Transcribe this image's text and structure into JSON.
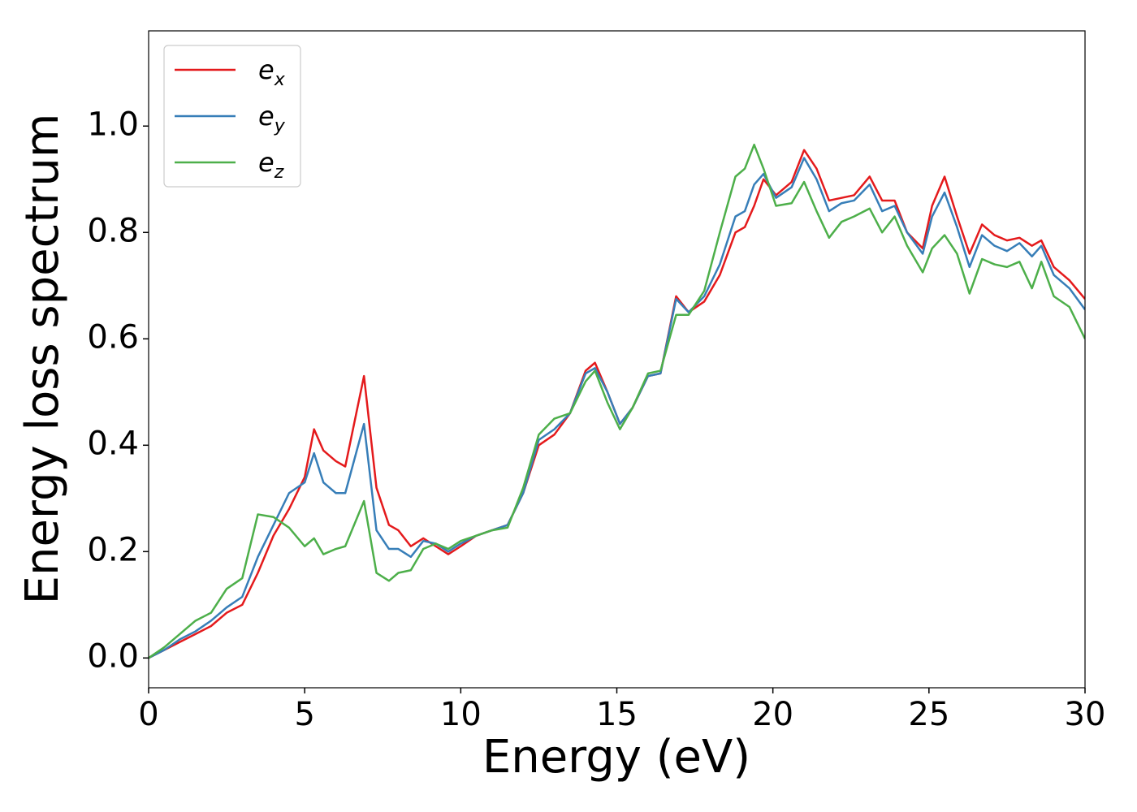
{
  "chart_data": {
    "type": "line",
    "xlabel": "Energy (eV)",
    "ylabel": "Energy loss spectrum",
    "xlim": [
      0,
      30
    ],
    "ylim": [
      -0.056,
      1.179
    ],
    "xticks": [
      0,
      5,
      10,
      15,
      20,
      25,
      30
    ],
    "yticks": [
      {
        "value": 0,
        "label": "0.0"
      },
      0.2,
      0.4,
      0.6,
      0.8,
      {
        "value": 1,
        "label": "1.0"
      }
    ],
    "grid": false,
    "legend": "upper left",
    "x": [
      0,
      0.5,
      1,
      1.5,
      2,
      2.5,
      3,
      3.5,
      4,
      4.5,
      5,
      5.3,
      5.6,
      6,
      6.3,
      6.9,
      7.3,
      7.7,
      8,
      8.4,
      8.8,
      9.2,
      9.6,
      10,
      10.5,
      11,
      11.5,
      12,
      12.5,
      13,
      13.5,
      14,
      14.3,
      14.7,
      15.1,
      15.5,
      16,
      16.4,
      16.9,
      17.3,
      17.8,
      18.3,
      18.8,
      19.1,
      19.4,
      19.7,
      20.1,
      20.6,
      21,
      21.4,
      21.8,
      22.2,
      22.6,
      23.1,
      23.5,
      23.9,
      24.3,
      24.8,
      25.1,
      25.5,
      25.9,
      26.3,
      26.7,
      27.1,
      27.5,
      27.9,
      28.3,
      28.6,
      29,
      29.5,
      30
    ],
    "series": [
      {
        "name": "e",
        "subscript": "x",
        "color": "#e41a1c",
        "values": [
          0,
          0.015,
          0.03,
          0.045,
          0.06,
          0.085,
          0.1,
          0.16,
          0.23,
          0.28,
          0.34,
          0.43,
          0.39,
          0.37,
          0.36,
          0.53,
          0.32,
          0.25,
          0.24,
          0.21,
          0.225,
          0.21,
          0.195,
          0.21,
          0.23,
          0.24,
          0.25,
          0.31,
          0.4,
          0.42,
          0.46,
          0.54,
          0.555,
          0.5,
          0.44,
          0.47,
          0.53,
          0.535,
          0.68,
          0.65,
          0.67,
          0.72,
          0.8,
          0.81,
          0.85,
          0.9,
          0.87,
          0.895,
          0.955,
          0.92,
          0.86,
          0.865,
          0.87,
          0.905,
          0.86,
          0.86,
          0.8,
          0.77,
          0.85,
          0.905,
          0.83,
          0.76,
          0.815,
          0.795,
          0.785,
          0.79,
          0.775,
          0.785,
          0.735,
          0.71,
          0.675
        ]
      },
      {
        "name": "e",
        "subscript": "y",
        "color": "#377eb8",
        "values": [
          0,
          0.015,
          0.035,
          0.05,
          0.07,
          0.095,
          0.115,
          0.19,
          0.25,
          0.31,
          0.33,
          0.385,
          0.33,
          0.31,
          0.31,
          0.44,
          0.24,
          0.205,
          0.205,
          0.19,
          0.22,
          0.215,
          0.2,
          0.215,
          0.23,
          0.24,
          0.25,
          0.31,
          0.41,
          0.43,
          0.46,
          0.535,
          0.545,
          0.5,
          0.44,
          0.47,
          0.53,
          0.535,
          0.675,
          0.65,
          0.68,
          0.74,
          0.83,
          0.84,
          0.89,
          0.91,
          0.865,
          0.885,
          0.94,
          0.9,
          0.84,
          0.855,
          0.86,
          0.89,
          0.84,
          0.85,
          0.8,
          0.76,
          0.83,
          0.875,
          0.81,
          0.735,
          0.795,
          0.775,
          0.765,
          0.78,
          0.755,
          0.775,
          0.72,
          0.695,
          0.655
        ]
      },
      {
        "name": "e",
        "subscript": "z",
        "color": "#4daf4a",
        "values": [
          0,
          0.02,
          0.045,
          0.07,
          0.085,
          0.13,
          0.15,
          0.27,
          0.265,
          0.245,
          0.21,
          0.225,
          0.195,
          0.205,
          0.21,
          0.295,
          0.16,
          0.145,
          0.16,
          0.165,
          0.205,
          0.215,
          0.205,
          0.22,
          0.23,
          0.24,
          0.245,
          0.32,
          0.42,
          0.45,
          0.46,
          0.52,
          0.54,
          0.48,
          0.43,
          0.47,
          0.535,
          0.54,
          0.645,
          0.645,
          0.69,
          0.8,
          0.905,
          0.92,
          0.965,
          0.92,
          0.85,
          0.855,
          0.895,
          0.84,
          0.79,
          0.82,
          0.83,
          0.845,
          0.8,
          0.83,
          0.775,
          0.725,
          0.77,
          0.795,
          0.76,
          0.685,
          0.75,
          0.74,
          0.735,
          0.745,
          0.695,
          0.745,
          0.68,
          0.66,
          0.6
        ]
      }
    ]
  }
}
